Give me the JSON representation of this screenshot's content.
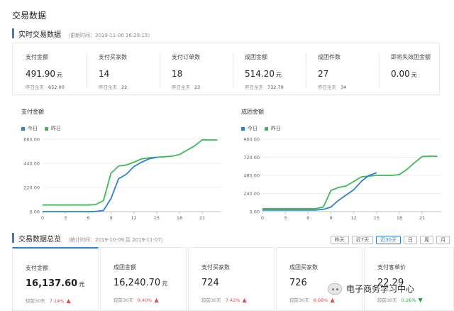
{
  "page_title": "交易数据",
  "realtime": {
    "title": "实时交易数据",
    "updated": "（更新时间：2019-11-08 16:29:15）",
    "kpis": [
      {
        "label": "支付金额",
        "value": "491.90",
        "unit": "元",
        "sub_label": "昨日全天",
        "sub_value": "652.00"
      },
      {
        "label": "支付买家数",
        "value": "14",
        "unit": "",
        "sub_label": "昨日全天",
        "sub_value": "22"
      },
      {
        "label": "支付订单数",
        "value": "18",
        "unit": "",
        "sub_label": "昨日全天",
        "sub_value": "23"
      },
      {
        "label": "成团金额",
        "value": "514.20",
        "unit": "元",
        "sub_label": "昨日全天",
        "sub_value": "732.70"
      },
      {
        "label": "成团件数",
        "value": "27",
        "unit": "",
        "sub_label": "昨日全天",
        "sub_value": "34"
      },
      {
        "label": "即将失效团金额",
        "value": "0.00",
        "unit": "元",
        "sub_label": "",
        "sub_value": ""
      }
    ]
  },
  "legend": {
    "today": "今日",
    "yesterday": "昨日"
  },
  "colors": {
    "accent": "#2f80d1",
    "today": "#2f80d1",
    "yesterday": "#3cba54",
    "up": "#e24c4c",
    "down": "#2a9b3c"
  },
  "chart_data": [
    {
      "type": "line",
      "title": "支付金额",
      "xlabel": "",
      "ylabel": "",
      "xticks": [
        0,
        3,
        6,
        9,
        12,
        15,
        18,
        21
      ],
      "yticks": [
        "0.00",
        "220.00",
        "440.00",
        "660.00"
      ],
      "xlim": [
        0,
        23.5
      ],
      "ylim": [
        0,
        660
      ],
      "series": [
        {
          "name": "今日",
          "color": "#2f80d1",
          "points": [
            [
              0,
              0
            ],
            [
              6,
              0
            ],
            [
              7,
              2
            ],
            [
              8,
              10
            ],
            [
              9,
              120
            ],
            [
              10,
              300
            ],
            [
              11,
              340
            ],
            [
              12,
              410
            ],
            [
              13,
              450
            ],
            [
              14,
              480
            ],
            [
              15,
              495
            ]
          ]
        },
        {
          "name": "昨日",
          "color": "#3cba54",
          "points": [
            [
              0,
              60
            ],
            [
              6,
              60
            ],
            [
              7,
              65
            ],
            [
              8,
              100
            ],
            [
              9,
              350
            ],
            [
              10,
              415
            ],
            [
              11,
              425
            ],
            [
              12,
              450
            ],
            [
              13,
              480
            ],
            [
              14,
              490
            ],
            [
              15,
              495
            ],
            [
              16,
              500
            ],
            [
              17,
              505
            ],
            [
              18,
              520
            ],
            [
              19,
              560
            ],
            [
              20,
              600
            ],
            [
              21,
              655
            ],
            [
              22,
              652
            ],
            [
              23,
              652
            ]
          ]
        }
      ]
    },
    {
      "type": "line",
      "title": "成团金额",
      "xlabel": "",
      "ylabel": "",
      "xticks": [
        0,
        3,
        6,
        9,
        12,
        15,
        18,
        21
      ],
      "yticks": [
        "0.00",
        "240.00",
        "480.00",
        "720.00",
        "960.00"
      ],
      "xlim": [
        0,
        23.5
      ],
      "ylim": [
        0,
        960
      ],
      "series": [
        {
          "name": "今日",
          "color": "#2f80d1",
          "points": [
            [
              0,
              20
            ],
            [
              7,
              20
            ],
            [
              8,
              30
            ],
            [
              9,
              60
            ],
            [
              10,
              150
            ],
            [
              11,
              220
            ],
            [
              12,
              290
            ],
            [
              13,
              400
            ],
            [
              14,
              480
            ],
            [
              15,
              514
            ]
          ]
        },
        {
          "name": "昨日",
          "color": "#3cba54",
          "points": [
            [
              0,
              40
            ],
            [
              7,
              40
            ],
            [
              8,
              60
            ],
            [
              9,
              280
            ],
            [
              10,
              320
            ],
            [
              11,
              340
            ],
            [
              12,
              400
            ],
            [
              13,
              460
            ],
            [
              14,
              470
            ],
            [
              15,
              480
            ],
            [
              16,
              480
            ],
            [
              17,
              480
            ],
            [
              18,
              490
            ],
            [
              19,
              560
            ],
            [
              20,
              650
            ],
            [
              21,
              730
            ],
            [
              22,
              735
            ],
            [
              23,
              732
            ]
          ]
        }
      ]
    }
  ],
  "overview": {
    "title": "交易数据总览",
    "range": "（统计时间：2019-10-09 至 2019-11-07）",
    "buttons": [
      "昨天",
      "近7天",
      "近30天",
      "日",
      "周",
      "月"
    ],
    "active_button": "近30天",
    "cards": [
      {
        "label": "支付金额",
        "value": "16,137.60",
        "unit": "元",
        "cmp": "较前30天",
        "pct": "7.14%",
        "dir": "up"
      },
      {
        "label": "成团金额",
        "value": "16,240.70",
        "unit": "元",
        "cmp": "较前30天",
        "pct": "9.40%",
        "dir": "up"
      },
      {
        "label": "支付买家数",
        "value": "724",
        "unit": "",
        "cmp": "较前30天",
        "pct": "7.42%",
        "dir": "up"
      },
      {
        "label": "成团买家数",
        "value": "726",
        "unit": "",
        "cmp": "较前30天",
        "pct": "8.68%",
        "dir": "up"
      },
      {
        "label": "支付客单价",
        "value": "22.29",
        "unit": "",
        "cmp": "较前30天",
        "pct": "0.26%",
        "dir": "down"
      }
    ]
  },
  "watermark": "电子商务学习中心"
}
